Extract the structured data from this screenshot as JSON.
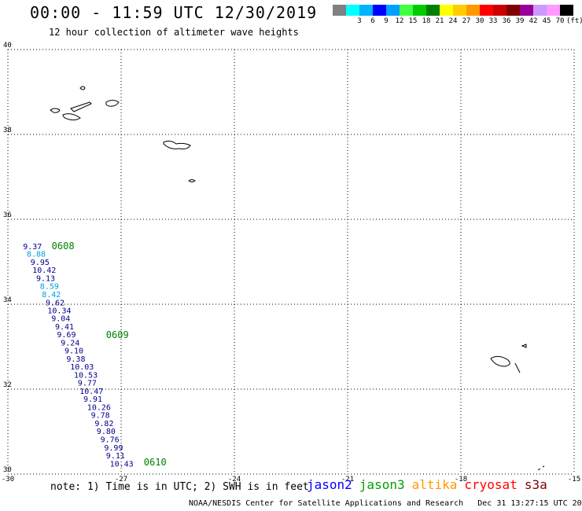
{
  "header": {
    "title": "00:00 - 11:59 UTC 12/30/2019",
    "subtitle": "12 hour collection of altimeter wave heights"
  },
  "colorbar": {
    "unit": "(ft)",
    "entries": [
      {
        "label": "",
        "color": "#808080"
      },
      {
        "label": "3",
        "color": "#00ffff"
      },
      {
        "label": "6",
        "color": "#00b4ff"
      },
      {
        "label": "9",
        "color": "#0000ff"
      },
      {
        "label": "12",
        "color": "#00a0ff"
      },
      {
        "label": "15",
        "color": "#40ff40"
      },
      {
        "label": "18",
        "color": "#00cc00"
      },
      {
        "label": "21",
        "color": "#008000"
      },
      {
        "label": "24",
        "color": "#ffff00"
      },
      {
        "label": "27",
        "color": "#ffcc00"
      },
      {
        "label": "30",
        "color": "#ff9900"
      },
      {
        "label": "33",
        "color": "#ff0000"
      },
      {
        "label": "36",
        "color": "#cc0000"
      },
      {
        "label": "39",
        "color": "#800000"
      },
      {
        "label": "42",
        "color": "#990099"
      },
      {
        "label": "45",
        "color": "#cc99ff"
      },
      {
        "label": "70",
        "color": "#ff99ff"
      },
      {
        "label": "",
        "color": "#000000"
      }
    ]
  },
  "map": {
    "lon_range": [
      -30,
      -15
    ],
    "lat_range": [
      30,
      40
    ],
    "lon_ticks": [
      "-30",
      "-27",
      "-24",
      "-21",
      "-18",
      "-15"
    ],
    "lat_ticks": [
      "40",
      "38",
      "36",
      "34",
      "32",
      "30"
    ]
  },
  "track": {
    "times": [
      {
        "label": "0608",
        "lon": -28.84,
        "lat": 35.3
      },
      {
        "label": "0609",
        "lon": -27.4,
        "lat": 33.2
      },
      {
        "label": "0610",
        "lon": -26.4,
        "lat": 30.2
      }
    ],
    "points": [
      {
        "v": "9.37",
        "lon": -29.6,
        "lat": 35.3,
        "c": "#00008b"
      },
      {
        "v": "8.88",
        "lon": -29.5,
        "lat": 35.12,
        "c": "#00a0e0"
      },
      {
        "v": "9.95",
        "lon": -29.4,
        "lat": 34.93,
        "c": "#00008b"
      },
      {
        "v": "10.42",
        "lon": -29.35,
        "lat": 34.74,
        "c": "#00008b"
      },
      {
        "v": "9.13",
        "lon": -29.25,
        "lat": 34.55,
        "c": "#00008b"
      },
      {
        "v": "8.59",
        "lon": -29.15,
        "lat": 34.36,
        "c": "#00a0e0"
      },
      {
        "v": "8.42",
        "lon": -29.1,
        "lat": 34.17,
        "c": "#00a0e0"
      },
      {
        "v": "9.62",
        "lon": -29.0,
        "lat": 33.97,
        "c": "#00008b"
      },
      {
        "v": "10.34",
        "lon": -28.95,
        "lat": 33.79,
        "c": "#00008b"
      },
      {
        "v": "9.04",
        "lon": -28.85,
        "lat": 33.6,
        "c": "#00008b"
      },
      {
        "v": "9.41",
        "lon": -28.75,
        "lat": 33.41,
        "c": "#00008b"
      },
      {
        "v": "9.69",
        "lon": -28.7,
        "lat": 33.22,
        "c": "#00008b"
      },
      {
        "v": "9.24",
        "lon": -28.6,
        "lat": 33.03,
        "c": "#00008b"
      },
      {
        "v": "9.10",
        "lon": -28.5,
        "lat": 32.84,
        "c": "#00008b"
      },
      {
        "v": "9.38",
        "lon": -28.45,
        "lat": 32.65,
        "c": "#00008b"
      },
      {
        "v": "10.03",
        "lon": -28.35,
        "lat": 32.46,
        "c": "#00008b"
      },
      {
        "v": "10.53",
        "lon": -28.25,
        "lat": 32.27,
        "c": "#00008b"
      },
      {
        "v": "9.77",
        "lon": -28.15,
        "lat": 32.08,
        "c": "#00008b"
      },
      {
        "v": "10.47",
        "lon": -28.1,
        "lat": 31.89,
        "c": "#00008b"
      },
      {
        "v": "9.91",
        "lon": -28.0,
        "lat": 31.7,
        "c": "#00008b"
      },
      {
        "v": "10.26",
        "lon": -27.9,
        "lat": 31.51,
        "c": "#00008b"
      },
      {
        "v": "9.78",
        "lon": -27.8,
        "lat": 31.32,
        "c": "#00008b"
      },
      {
        "v": "9.82",
        "lon": -27.7,
        "lat": 31.13,
        "c": "#00008b"
      },
      {
        "v": "9.80",
        "lon": -27.65,
        "lat": 30.94,
        "c": "#00008b"
      },
      {
        "v": "9.76",
        "lon": -27.55,
        "lat": 30.75,
        "c": "#00008b"
      },
      {
        "v": "9.99",
        "lon": -27.45,
        "lat": 30.56,
        "c": "#00008b"
      },
      {
        "v": "9.11",
        "lon": -27.4,
        "lat": 30.37,
        "c": "#00008b"
      },
      {
        "v": "10.43",
        "lon": -27.3,
        "lat": 30.18,
        "c": "#00008b"
      }
    ]
  },
  "footer": {
    "note": "note: 1) Time is in UTC; 2) SWH is in feet",
    "credit": "NOAA/NESDIS Center for Satellite Applications and Research   Dec 31 13:27:15 UTC 2019"
  },
  "legend": [
    {
      "label": "jason2",
      "color": "#0000ff"
    },
    {
      "label": "jason3",
      "color": "#00a000"
    },
    {
      "label": "altika",
      "color": "#ff9900"
    },
    {
      "label": "cryosat",
      "color": "#ff0000"
    },
    {
      "label": "s3a",
      "color": "#800000"
    }
  ]
}
